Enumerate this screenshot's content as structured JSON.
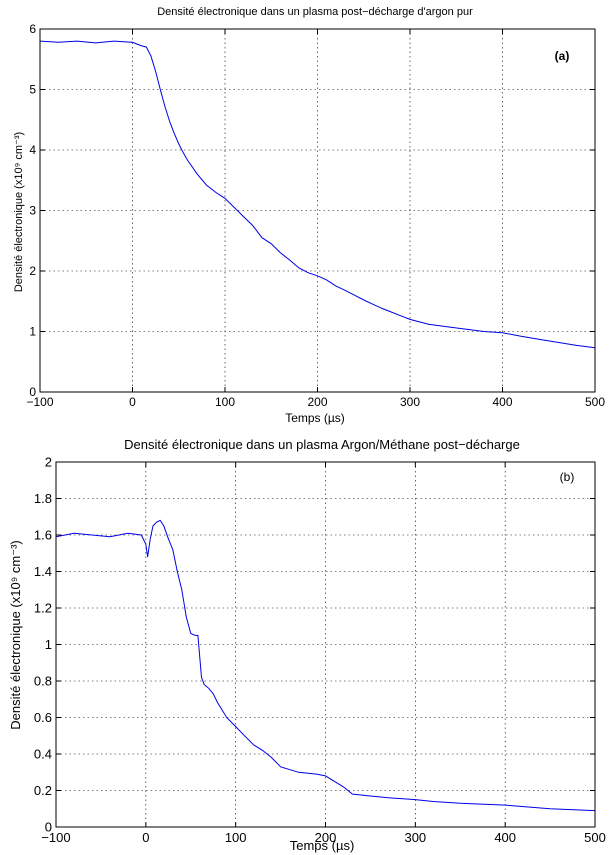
{
  "colors": {
    "series": "#0000e6",
    "axes": "#000000",
    "background": "#ffffff"
  },
  "chart_data": [
    {
      "type": "line",
      "title": "Densité électronique dans un plasma post−décharge d'argon pur",
      "panel_label": "(a)",
      "xlabel": "Temps (µs)",
      "ylabel": "Densité électronique (x10⁹ cm⁻³)",
      "xlim": [
        -100,
        500
      ],
      "ylim": [
        0,
        6
      ],
      "xticks": [
        -100,
        0,
        100,
        200,
        300,
        400,
        500
      ],
      "xtick_labels": [
        "−100",
        "0",
        "100",
        "200",
        "300",
        "400",
        "500"
      ],
      "yticks": [
        0,
        1,
        2,
        3,
        4,
        5,
        6
      ],
      "ytick_labels": [
        "0",
        "1",
        "2",
        "3",
        "4",
        "5",
        "6"
      ],
      "grid": true,
      "series": [
        {
          "x": [
            -100,
            -80,
            -60,
            -40,
            -20,
            0,
            5,
            10,
            15,
            20,
            25,
            30,
            35,
            40,
            45,
            50,
            55,
            60,
            70,
            80,
            90,
            100,
            110,
            120,
            130,
            140,
            150,
            160,
            170,
            180,
            190,
            200,
            210,
            220,
            230,
            240,
            250,
            260,
            270,
            280,
            290,
            300,
            320,
            340,
            360,
            380,
            400,
            420,
            440,
            460,
            480,
            500
          ],
          "y": [
            5.8,
            5.78,
            5.8,
            5.77,
            5.8,
            5.78,
            5.75,
            5.72,
            5.7,
            5.55,
            5.3,
            5.0,
            4.72,
            4.48,
            4.28,
            4.1,
            3.95,
            3.82,
            3.6,
            3.42,
            3.3,
            3.2,
            3.05,
            2.9,
            2.75,
            2.55,
            2.45,
            2.3,
            2.18,
            2.05,
            1.97,
            1.92,
            1.85,
            1.75,
            1.68,
            1.6,
            1.52,
            1.45,
            1.38,
            1.32,
            1.26,
            1.2,
            1.12,
            1.08,
            1.04,
            1.0,
            0.98,
            0.92,
            0.87,
            0.82,
            0.77,
            0.73
          ]
        }
      ]
    },
    {
      "type": "line",
      "title": "Densité électronique dans un plasma Argon/Méthane post−décharge",
      "panel_label": "(b)",
      "xlabel": "Temps (µs)",
      "ylabel": "Densité électronique (x10⁹ cm⁻³)",
      "xlim": [
        -100,
        500
      ],
      "ylim": [
        0,
        2
      ],
      "xticks": [
        -100,
        0,
        100,
        200,
        300,
        400,
        500
      ],
      "xtick_labels": [
        "−100",
        "0",
        "100",
        "200",
        "300",
        "400",
        "500"
      ],
      "yticks": [
        0,
        0.2,
        0.4,
        0.6,
        0.8,
        1.0,
        1.2,
        1.4,
        1.6,
        1.8,
        2.0
      ],
      "ytick_labels": [
        "0",
        "0.2",
        "0.4",
        "0.6",
        "0.8",
        "1",
        "1.2",
        "1.4",
        "1.6",
        "1.8",
        "2"
      ],
      "grid": true,
      "series": [
        {
          "x": [
            -100,
            -80,
            -60,
            -40,
            -20,
            -5,
            0,
            2,
            5,
            8,
            12,
            16,
            20,
            25,
            30,
            35,
            40,
            45,
            50,
            55,
            58,
            62,
            65,
            70,
            75,
            80,
            90,
            100,
            110,
            120,
            130,
            140,
            150,
            170,
            190,
            200,
            210,
            220,
            230,
            250,
            270,
            300,
            320,
            350,
            400,
            450,
            500
          ],
          "y": [
            1.59,
            1.61,
            1.6,
            1.59,
            1.61,
            1.6,
            1.55,
            1.48,
            1.58,
            1.65,
            1.67,
            1.68,
            1.65,
            1.58,
            1.52,
            1.4,
            1.3,
            1.15,
            1.06,
            1.05,
            1.05,
            0.82,
            0.78,
            0.76,
            0.73,
            0.68,
            0.6,
            0.55,
            0.5,
            0.45,
            0.42,
            0.38,
            0.33,
            0.3,
            0.29,
            0.28,
            0.25,
            0.22,
            0.18,
            0.17,
            0.16,
            0.15,
            0.14,
            0.13,
            0.12,
            0.1,
            0.09
          ]
        }
      ]
    }
  ]
}
